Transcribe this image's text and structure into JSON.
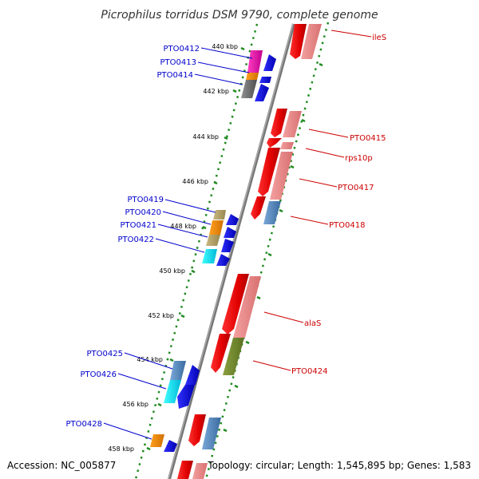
{
  "title": "Picrophilus torridus DSM 9790, complete genome",
  "footer": {
    "accession": "Accession: NC_005877",
    "topology": "Topology: circular; Length: 1,545,895 bp; Genes: 1,583"
  },
  "colors": {
    "reverse_label": "#0000cc",
    "forward_label": "#cc0000",
    "backbone": "#888888",
    "track_dots": "#228b22"
  },
  "scale_labels": [
    "440 kbp",
    "442 kbp",
    "444 kbp",
    "446 kbp",
    "448 kbp",
    "450 kbp",
    "452 kbp",
    "454 kbp",
    "456 kbp",
    "458 kbp"
  ],
  "reverse_genes": [
    "PTO0412",
    "PTO0413",
    "PTO0414",
    "PTO0419",
    "PTO0420",
    "PTO0421",
    "PTO0422",
    "PTO0425",
    "PTO0426",
    "PTO0428"
  ],
  "forward_genes": [
    "ileS",
    "PTO0415",
    "rps10p",
    "PTO0417",
    "PTO0418",
    "alaS",
    "PTO0424"
  ]
}
